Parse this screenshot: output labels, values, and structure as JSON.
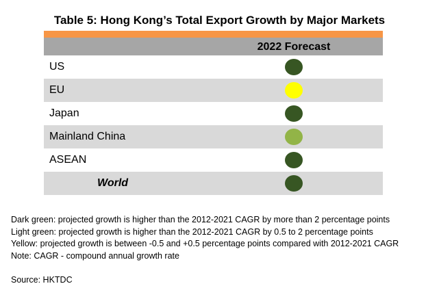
{
  "title": "Table 5: Hong Kong’s Total Export Growth by Major Markets",
  "header": {
    "column_label": "2022 Forecast"
  },
  "colors": {
    "dark_green": "#375623",
    "light_green": "#92b447",
    "yellow": "#ffff00",
    "header_bg": "#a6a6a6",
    "accent_bar": "#f79646",
    "row_shade": "#d9d9d9"
  },
  "rows": [
    {
      "market": "US",
      "forecast": "dark_green"
    },
    {
      "market": "EU",
      "forecast": "yellow"
    },
    {
      "market": "Japan",
      "forecast": "dark_green"
    },
    {
      "market": "Mainland China",
      "forecast": "light_green"
    },
    {
      "market": "ASEAN",
      "forecast": "dark_green"
    },
    {
      "market": "World",
      "forecast": "dark_green"
    }
  ],
  "notes": [
    "Dark green: projected growth is higher than the 2012-2021 CAGR by more than 2 percentage points",
    "Light green: projected growth is higher than the 2012-2021 CAGR by 0.5 to 2 percentage points",
    "Yellow: projected growth is between -0.5 and +0.5 percentage points compared with 2012-2021 CAGR",
    "Note: CAGR - compound annual growth rate"
  ],
  "source": "Source: HKTDC"
}
